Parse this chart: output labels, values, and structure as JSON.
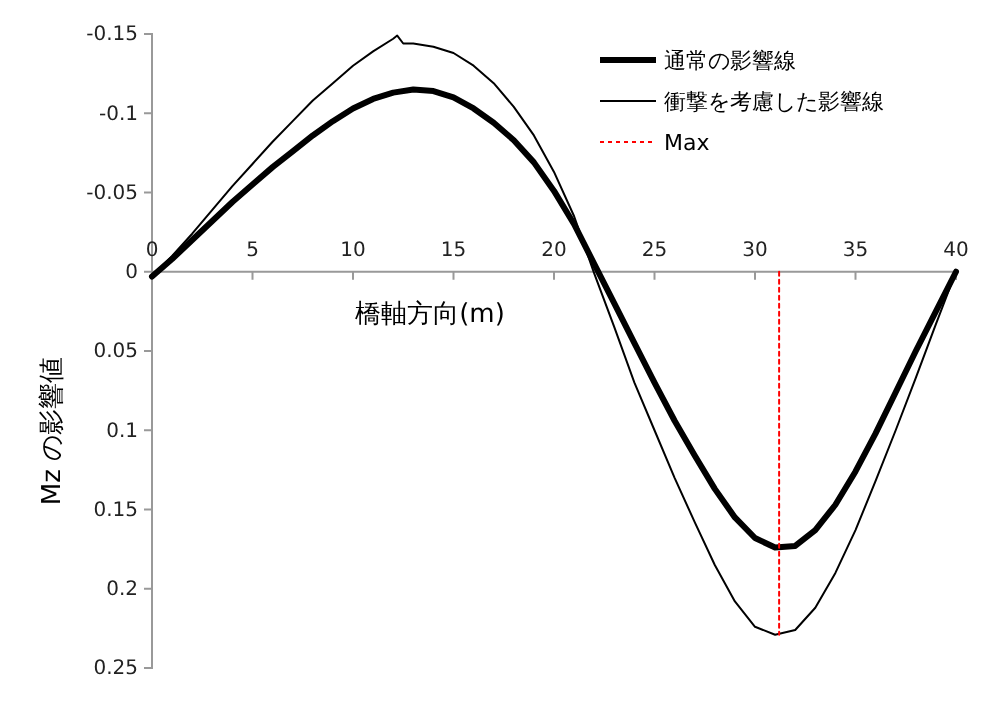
{
  "chart_data": {
    "type": "line",
    "xlabel": "橋軸方向(m)",
    "ylabel": "Mz の影響値",
    "xlim": [
      0,
      40
    ],
    "xticks": [
      0,
      5,
      10,
      15,
      20,
      25,
      30,
      35,
      40
    ],
    "ylim": [
      0.25,
      -0.15
    ],
    "yticks": [
      -0.15,
      -0.1,
      -0.05,
      0,
      0.05,
      0.1,
      0.15,
      0.2,
      0.25
    ],
    "grid": false,
    "legend": "top right",
    "marker": "none",
    "series": [
      {
        "name": "通常の影響線",
        "color": "#000000",
        "x": [
          0,
          1,
          2,
          3,
          4,
          5,
          6,
          7,
          8,
          9,
          10,
          11,
          12,
          13,
          14,
          15,
          16,
          17,
          18,
          19,
          20,
          21,
          22,
          23,
          24,
          25,
          26,
          27,
          28,
          29,
          30,
          31,
          32,
          33,
          34,
          35,
          36,
          37,
          38,
          39,
          40
        ],
        "values": [
          0.003,
          -0.008,
          -0.02,
          -0.032,
          -0.044,
          -0.055,
          -0.066,
          -0.076,
          -0.086,
          -0.095,
          -0.103,
          -0.109,
          -0.113,
          -0.115,
          -0.114,
          -0.11,
          -0.103,
          -0.094,
          -0.083,
          -0.069,
          -0.051,
          -0.03,
          -0.005,
          0.02,
          0.045,
          0.07,
          0.094,
          0.116,
          0.137,
          0.155,
          0.168,
          0.174,
          0.173,
          0.163,
          0.147,
          0.126,
          0.102,
          0.076,
          0.05,
          0.025,
          0
        ]
      },
      {
        "name": "衝撃を考慮した影響線",
        "color": "#000000",
        "x": [
          0,
          1,
          2,
          3,
          4,
          5,
          6,
          7,
          8,
          9,
          10,
          11,
          12,
          12.2,
          12.5,
          13,
          14,
          15,
          16,
          17,
          18,
          19,
          20,
          21,
          22,
          23,
          24,
          25,
          26,
          27,
          28,
          29,
          30,
          31,
          32,
          33,
          34,
          35,
          36,
          37,
          38,
          39,
          40
        ],
        "values": [
          0.003,
          -0.01,
          -0.024,
          -0.039,
          -0.054,
          -0.068,
          -0.082,
          -0.095,
          -0.108,
          -0.119,
          -0.13,
          -0.139,
          -0.147,
          -0.149,
          -0.144,
          -0.144,
          -0.142,
          -0.138,
          -0.13,
          -0.119,
          -0.104,
          -0.086,
          -0.063,
          -0.035,
          0.001,
          0.035,
          0.07,
          0.1,
          0.13,
          0.158,
          0.185,
          0.208,
          0.224,
          0.229,
          0.226,
          0.212,
          0.19,
          0.163,
          0.132,
          0.1,
          0.067,
          0.033,
          0
        ]
      },
      {
        "name": "Max",
        "color": "#ff0000",
        "line_style": "dotted",
        "x": [
          31.2,
          31.2
        ],
        "values": [
          0,
          0.229
        ]
      }
    ]
  }
}
